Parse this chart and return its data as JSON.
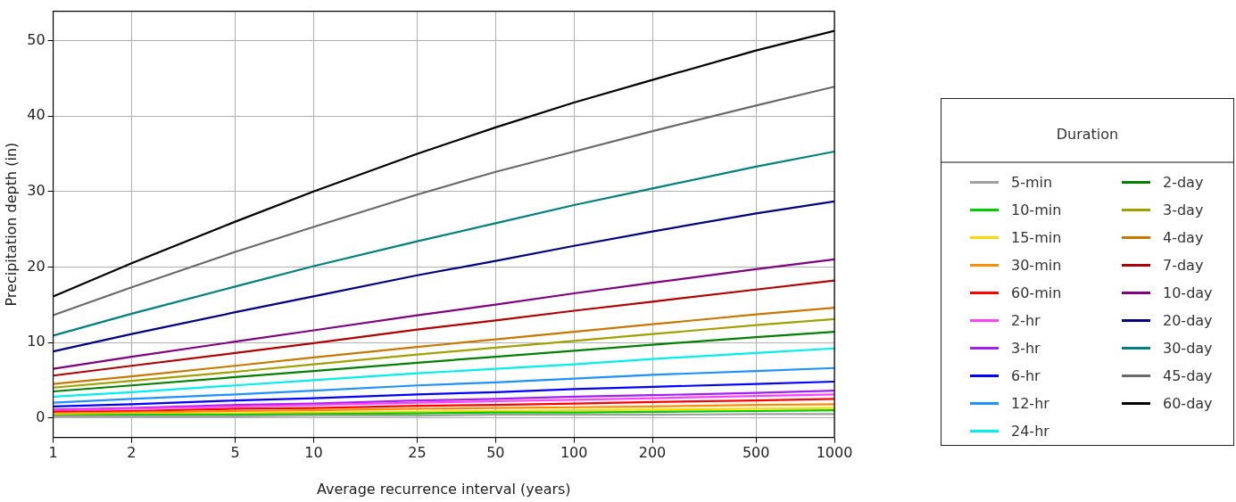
{
  "chart_data": {
    "type": "line",
    "xlabel": "Average recurrence interval (years)",
    "ylabel": "Precipitation depth (in)",
    "legend_title": "Duration",
    "legend": "right",
    "grid": true,
    "log": "x",
    "marker": "none",
    "line_style": "solid",
    "x": [
      1,
      2,
      5,
      10,
      25,
      50,
      100,
      200,
      500,
      1000
    ],
    "xlim": [
      1,
      1000
    ],
    "xticks": [
      1,
      2,
      5,
      10,
      25,
      50,
      100,
      200,
      500,
      1000
    ],
    "ylim": [
      -2.6,
      53.9
    ],
    "yticks": [
      0,
      10,
      20,
      30,
      40,
      50
    ],
    "series": [
      {
        "name": "5-min",
        "color": "#a0a0a0",
        "values": [
          0.2,
          0.2,
          0.2,
          0.3,
          0.3,
          0.4,
          0.4,
          0.4,
          0.5,
          0.5
        ]
      },
      {
        "name": "10-min",
        "color": "#00cc00",
        "values": [
          0.3,
          0.4,
          0.4,
          0.5,
          0.6,
          0.7,
          0.7,
          0.8,
          0.9,
          1.0
        ]
      },
      {
        "name": "15-min",
        "color": "#ffd700",
        "values": [
          0.4,
          0.5,
          0.6,
          0.7,
          0.8,
          0.9,
          1.0,
          1.1,
          1.2,
          1.3
        ]
      },
      {
        "name": "30-min",
        "color": "#ff8c00",
        "values": [
          0.6,
          0.7,
          0.9,
          1.0,
          1.2,
          1.3,
          1.4,
          1.5,
          1.7,
          1.8
        ]
      },
      {
        "name": "60-min",
        "color": "#ff0000",
        "values": [
          0.8,
          0.9,
          1.2,
          1.3,
          1.6,
          1.7,
          1.9,
          2.1,
          2.3,
          2.5
        ]
      },
      {
        "name": "2-hr",
        "color": "#ff40ff",
        "values": [
          1.0,
          1.2,
          1.5,
          1.7,
          2.0,
          2.2,
          2.4,
          2.6,
          2.9,
          3.1
        ]
      },
      {
        "name": "3-hr",
        "color": "#a020f0",
        "values": [
          1.1,
          1.3,
          1.7,
          1.9,
          2.3,
          2.5,
          2.8,
          3.0,
          3.3,
          3.6
        ]
      },
      {
        "name": "6-hr",
        "color": "#0000ff",
        "values": [
          1.5,
          1.8,
          2.3,
          2.6,
          3.1,
          3.4,
          3.8,
          4.1,
          4.5,
          4.8
        ]
      },
      {
        "name": "12-hr",
        "color": "#1e90ff",
        "values": [
          2.0,
          2.5,
          3.1,
          3.6,
          4.3,
          4.7,
          5.2,
          5.7,
          6.2,
          6.6
        ]
      },
      {
        "name": "24-hr",
        "color": "#00eeee",
        "values": [
          2.8,
          3.4,
          4.3,
          5.0,
          5.9,
          6.5,
          7.1,
          7.8,
          8.6,
          9.2
        ]
      },
      {
        "name": "2-day",
        "color": "#008000",
        "values": [
          3.5,
          4.3,
          5.4,
          6.2,
          7.3,
          8.1,
          8.9,
          9.7,
          10.7,
          11.4
        ]
      },
      {
        "name": "3-day",
        "color": "#a0a000",
        "values": [
          4.0,
          4.9,
          6.1,
          7.1,
          8.4,
          9.3,
          10.2,
          11.1,
          12.3,
          13.1
        ]
      },
      {
        "name": "4-day",
        "color": "#c87800",
        "values": [
          4.5,
          5.5,
          6.9,
          8.0,
          9.4,
          10.4,
          11.4,
          12.4,
          13.7,
          14.6
        ]
      },
      {
        "name": "7-day",
        "color": "#b00000",
        "values": [
          5.6,
          6.9,
          8.6,
          9.9,
          11.7,
          12.9,
          14.2,
          15.4,
          17.0,
          18.2
        ]
      },
      {
        "name": "10-day",
        "color": "#800080",
        "values": [
          6.5,
          8.1,
          10.1,
          11.6,
          13.6,
          15.0,
          16.5,
          17.9,
          19.7,
          21.0
        ]
      },
      {
        "name": "20-day",
        "color": "#000080",
        "values": [
          8.8,
          11.1,
          14.0,
          16.1,
          18.9,
          20.8,
          22.8,
          24.7,
          27.1,
          28.7
        ]
      },
      {
        "name": "30-day",
        "color": "#008080",
        "values": [
          10.9,
          13.8,
          17.4,
          20.1,
          23.4,
          25.8,
          28.2,
          30.4,
          33.3,
          35.3
        ]
      },
      {
        "name": "45-day",
        "color": "#696969",
        "values": [
          13.6,
          17.3,
          22.0,
          25.3,
          29.6,
          32.6,
          35.3,
          38.0,
          41.4,
          43.9
        ]
      },
      {
        "name": "60-day",
        "color": "#000000",
        "values": [
          16.1,
          20.5,
          26.0,
          30.0,
          35.0,
          38.5,
          41.8,
          44.8,
          48.7,
          51.3
        ]
      }
    ]
  }
}
